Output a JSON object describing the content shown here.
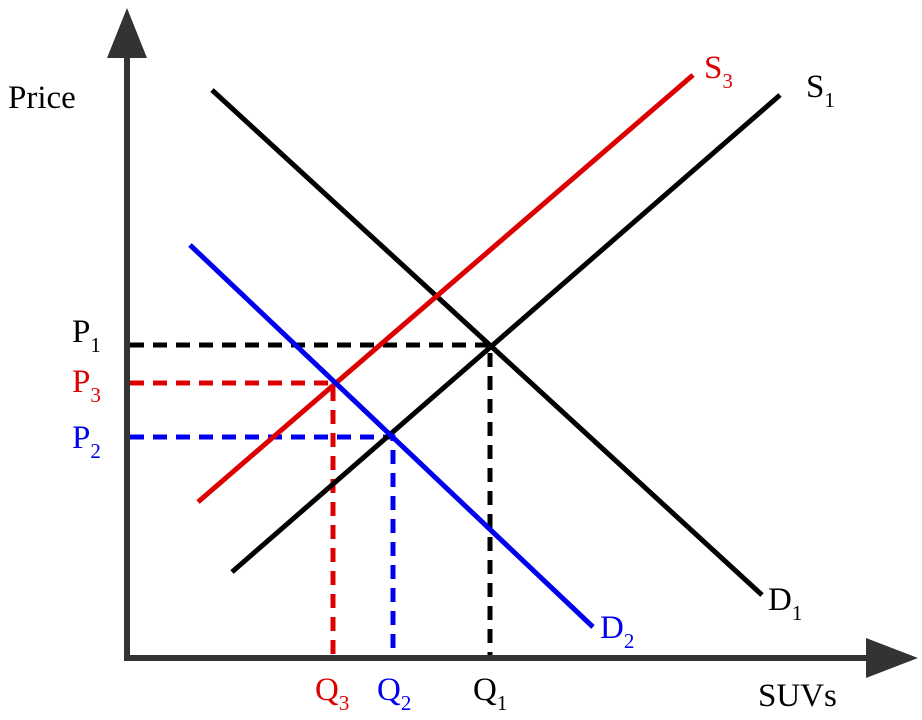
{
  "axes": {
    "y_label": "Price",
    "x_label": "SUVs"
  },
  "curves": [
    {
      "letter": "S",
      "sub": "3"
    },
    {
      "letter": "S",
      "sub": "1"
    },
    {
      "letter": "D",
      "sub": "1"
    },
    {
      "letter": "D",
      "sub": "2"
    }
  ],
  "price_levels": [
    {
      "letter": "P",
      "sub": "1"
    },
    {
      "letter": "P",
      "sub": "3"
    },
    {
      "letter": "P",
      "sub": "2"
    }
  ],
  "quantities": [
    {
      "letter": "Q",
      "sub": "3"
    },
    {
      "letter": "Q",
      "sub": "2"
    },
    {
      "letter": "Q",
      "sub": "1"
    }
  ]
}
